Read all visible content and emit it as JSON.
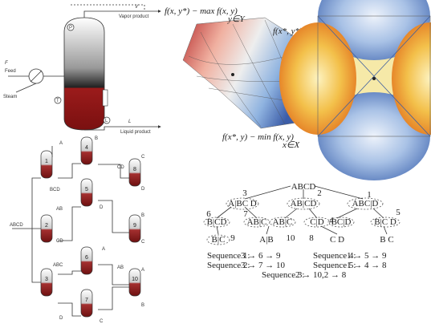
{
  "flash": {
    "feed_symbol": "F",
    "feed": "Feed",
    "steam": "Steam",
    "vapor_symbol": "V",
    "vapor": "Vapor product",
    "liquid_symbol": "L",
    "liquid": "Liquid product",
    "instruments": [
      "P",
      "T",
      "L"
    ]
  },
  "saddle": {
    "top_label": "f(x, y*) − max f(x, y)",
    "top_sub": "y∈Y",
    "point_label": "f(x*, y*)",
    "bottom_label": "f(x*, y) − min f(x, y)",
    "bottom_sub": "x∈X"
  },
  "network": {
    "columns": [
      "1",
      "2",
      "3",
      "4",
      "5",
      "6",
      "7",
      "8",
      "9",
      "10"
    ],
    "streams": [
      "ABCD",
      "A",
      "BCD",
      "AB",
      "CD",
      "ABC",
      "D",
      "B",
      "CD",
      "D",
      "C",
      "D",
      "B",
      "C",
      "A",
      "A",
      "AB",
      "B",
      "C"
    ]
  },
  "tree": {
    "root": "ABCD",
    "numbers": [
      "3",
      "2",
      "1",
      "6",
      "7",
      "4",
      "5",
      "9",
      "10",
      "8"
    ],
    "level2": [
      "A|BC D",
      "AB|CD",
      "ABC|D"
    ],
    "level3": [
      "B|CD",
      "AB|C",
      "AB|C",
      "C|D",
      "BC|D",
      "B|C D"
    ],
    "level4": [
      "B|C",
      "A|B",
      "C D",
      "B C"
    ],
    "sequences": [
      "Sequence 1:",
      "3 → 6 → 9",
      "Sequence 4:",
      "1 → 5 → 9",
      "Sequence 2:",
      "3 → 7 → 10",
      "Sequence 5:",
      "1 → 4 → 8",
      "Sequence 3:",
      "2 → 10,2 → 8"
    ]
  }
}
